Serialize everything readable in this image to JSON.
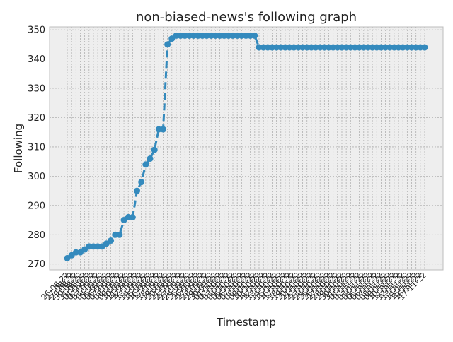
{
  "chart_data": {
    "type": "line",
    "title": "non-biased-news's following graph",
    "xlabel": "Timestamp",
    "ylabel": "Following",
    "ylim": [
      268,
      351
    ],
    "yticks": [
      270,
      280,
      290,
      300,
      310,
      320,
      330,
      340,
      350
    ],
    "grid": true,
    "colors": {
      "line": "#348abd",
      "plot_bg": "#eeeeee",
      "grid": "#b0b0b0"
    },
    "x": [
      "26-08-22",
      "27-08-22",
      "29-08-22",
      "30-08-22",
      "31-08-22",
      "01-09-22",
      "02-09-22",
      "03-09-22",
      "04-09-22",
      "05-09-22",
      "06-09-22",
      "07-09-22",
      "08-09-22",
      "09-09-22",
      "10-09-22",
      "11-09-22",
      "12-09-22",
      "13-09-22",
      "14-09-22",
      "15-09-22",
      "16-09-22",
      "17-09-22",
      "18-09-22",
      "19-09-22",
      "20-09-22",
      "21-09-22",
      "22-09-22",
      "23-09-22",
      "24-09-22",
      "25-09-22",
      "26-09-22",
      "27-09-22",
      "28-09-22",
      "29-09-22",
      "30-09-22",
      "01-10-22",
      "02-10-22",
      "03-10-22",
      "04-10-22",
      "05-10-22",
      "06-10-22",
      "07-10-22",
      "08-10-22",
      "09-10-22",
      "10-10-22",
      "11-10-22",
      "12-10-22",
      "13-10-22",
      "14-10-22",
      "15-10-22",
      "16-10-22",
      "17-10-22",
      "18-10-22",
      "19-10-22",
      "20-10-22",
      "21-10-22",
      "22-10-22",
      "23-10-22",
      "24-10-22",
      "25-10-22",
      "26-10-22",
      "27-10-22",
      "28-10-22",
      "29-10-22",
      "30-10-22",
      "31-10-22",
      "01-11-22",
      "02-11-22",
      "03-11-22",
      "04-11-22",
      "05-11-22",
      "06-11-22",
      "07-11-22",
      "08-11-22",
      "09-11-22",
      "10-11-22",
      "11-11-22",
      "12-11-22",
      "13-11-22",
      "14-11-22",
      "15-11-22",
      "16-11-22",
      "17-11-22"
    ],
    "values": [
      272,
      273,
      274,
      274,
      275,
      276,
      276,
      276,
      276,
      277,
      278,
      280,
      280,
      285,
      286,
      286,
      295,
      298,
      304,
      306,
      309,
      316,
      316,
      345,
      347,
      348,
      348,
      348,
      348,
      348,
      348,
      348,
      348,
      348,
      348,
      348,
      348,
      348,
      348,
      348,
      348,
      348,
      348,
      348,
      344,
      344,
      344,
      344,
      344,
      344,
      344,
      344,
      344,
      344,
      344,
      344,
      344,
      344,
      344,
      344,
      344,
      344,
      344,
      344,
      344,
      344,
      344,
      344,
      344,
      344,
      344,
      344,
      344,
      344,
      344,
      344,
      344,
      344,
      344,
      344,
      344,
      344,
      344
    ]
  }
}
